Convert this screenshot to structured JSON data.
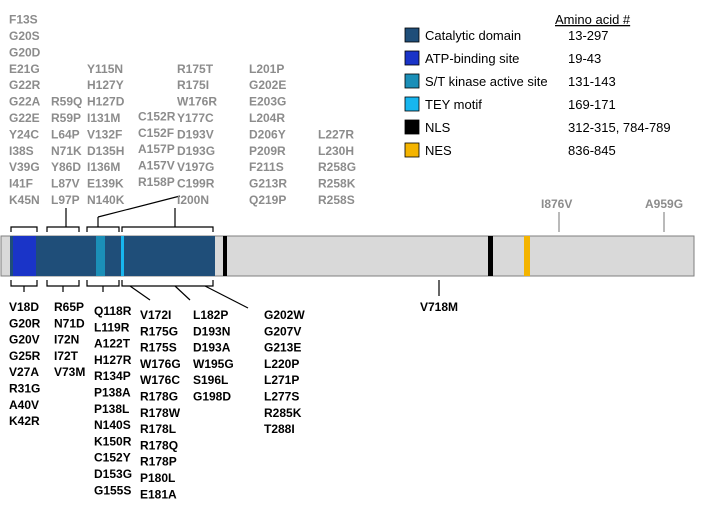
{
  "legend": {
    "header": "Amino acid #",
    "items": [
      {
        "label": "Catalytic domain",
        "range": "13-297",
        "color": "#1f4e79"
      },
      {
        "label": "ATP-binding site",
        "range": "19-43",
        "color": "#1a34c8"
      },
      {
        "label": "S/T kinase active site",
        "range": "131-143",
        "color": "#1b8fb8"
      },
      {
        "label": "TEY motif",
        "range": "169-171",
        "color": "#17b6ef"
      },
      {
        "label": "NLS",
        "range": "312-315, 784-789",
        "color": "#000000"
      },
      {
        "label": "NES",
        "range": "836-845",
        "color": "#f4b400"
      }
    ]
  },
  "protein": {
    "length": 1000,
    "background_color": "#d9d9d9",
    "outline_color": "#7f7f7f"
  },
  "top_mutations": [
    [
      "F13S",
      "G20S",
      "G20D",
      "E21G",
      "G22R",
      "G22A",
      "G22E",
      "Y24C",
      "I38S",
      "V39G",
      "I41F",
      "K45N"
    ],
    [
      "R59Q",
      "R59P",
      "L64P",
      "N71K",
      "Y86D",
      "L87V",
      "L97P"
    ],
    [
      "Y115N",
      "H127Y",
      "H127D",
      "I131M",
      "V132F",
      "D135H",
      "I136M",
      "E139K",
      "N140K"
    ],
    [
      "C152R",
      "C152F",
      "A157P",
      "A157V",
      "R158P"
    ],
    [
      "R175T",
      "R175I",
      "W176R",
      "Y177C",
      "D193V",
      "D193G",
      "V197G",
      "C199R",
      "I200N"
    ],
    [
      "L201P",
      "G202E",
      "E203G",
      "L204R",
      "D206Y",
      "P209R",
      "F211S",
      "G213R",
      "Q219P"
    ],
    [
      "L227R",
      "L230H",
      "R258G",
      "R258K",
      "R258S"
    ]
  ],
  "top_single": [
    "I876V",
    "A959G"
  ],
  "bottom_mutations": [
    [
      "V18D",
      "G20R",
      "G20V",
      "G25R",
      "V27A",
      "R31G",
      "A40V",
      "K42R"
    ],
    [
      "R65P",
      "N71D",
      "I72N",
      "I72T",
      "V73M"
    ],
    [
      "Q118R",
      "L119R",
      "A122T",
      "H127R",
      "R134P",
      "P138A",
      "P138L",
      "N140S",
      "K150R",
      "C152Y",
      "D153G",
      "G155S"
    ],
    [
      "V172I",
      "R175G",
      "R175S",
      "W176G",
      "W176C",
      "R178G",
      "R178W",
      "R178L",
      "R178Q",
      "R178P",
      "P180L",
      "E181A"
    ],
    [
      "L182P",
      "D193N",
      "D193A",
      "W195G",
      "S196L",
      "G198D"
    ],
    [
      "G202W",
      "G207V",
      "G213E",
      "L220P",
      "L271P",
      "L277S",
      "R285K",
      "T288I"
    ]
  ],
  "bottom_single": [
    "V718M"
  ]
}
